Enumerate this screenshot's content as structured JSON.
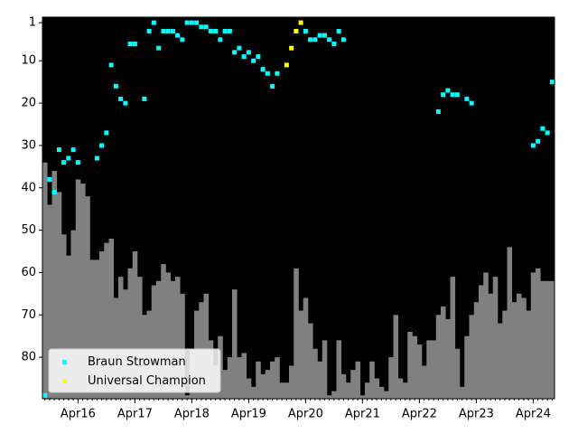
{
  "chart_data": {
    "type": "scatter",
    "x": [
      "2015-09",
      "2015-10",
      "2015-11",
      "2015-12",
      "2016-01",
      "2016-02",
      "2016-03",
      "2016-04",
      "2016-05",
      "2016-06",
      "2016-07",
      "2016-08",
      "2016-09",
      "2016-10",
      "2016-11",
      "2016-12",
      "2017-01",
      "2017-02",
      "2017-03",
      "2017-04",
      "2017-05",
      "2017-06",
      "2017-07",
      "2017-08",
      "2017-09",
      "2017-10",
      "2017-11",
      "2017-12",
      "2018-01",
      "2018-02",
      "2018-03",
      "2018-04",
      "2018-05",
      "2018-06",
      "2018-07",
      "2018-08",
      "2018-09",
      "2018-10",
      "2018-11",
      "2018-12",
      "2019-01",
      "2019-02",
      "2019-03",
      "2019-04",
      "2019-05",
      "2019-06",
      "2019-07",
      "2019-08",
      "2019-09",
      "2019-10",
      "2019-11",
      "2019-12",
      "2020-01",
      "2020-02",
      "2020-03",
      "2020-04",
      "2020-05",
      "2020-06",
      "2020-07",
      "2020-08",
      "2020-09",
      "2020-10",
      "2020-11",
      "2020-12",
      "2021-01",
      "2021-02",
      "2021-03",
      "2021-04",
      "2021-05",
      "2021-06",
      "2021-07",
      "2021-08",
      "2021-09",
      "2021-10",
      "2021-11",
      "2021-12",
      "2022-01",
      "2022-02",
      "2022-03",
      "2022-04",
      "2022-05",
      "2022-06",
      "2022-07",
      "2022-08",
      "2022-09",
      "2022-10",
      "2022-11",
      "2022-12",
      "2023-01",
      "2023-02",
      "2023-03",
      "2023-04",
      "2023-05",
      "2023-06",
      "2023-07",
      "2023-08",
      "2023-09",
      "2023-10",
      "2023-11",
      "2023-12",
      "2024-01",
      "2024-02",
      "2024-03",
      "2024-04",
      "2024-05",
      "2024-06",
      "2024-07",
      "2024-08"
    ],
    "bars": {
      "color": "#808080",
      "values": [
        34,
        44,
        36,
        41,
        51,
        56,
        50,
        38,
        39,
        42,
        57,
        57,
        55,
        53,
        52,
        66,
        61,
        64,
        59,
        55,
        61,
        70,
        69,
        63,
        62,
        58,
        60,
        62,
        61,
        65,
        89,
        78,
        69,
        67,
        65,
        76,
        82,
        75,
        83,
        80,
        64,
        80,
        79,
        85,
        87,
        81,
        84,
        83,
        81,
        80,
        86,
        86,
        82,
        59,
        69,
        66,
        72,
        78,
        81,
        76,
        89,
        88,
        76,
        84,
        86,
        83,
        81,
        89,
        86,
        81,
        85,
        87,
        88,
        80,
        70,
        85,
        86,
        74,
        75,
        77,
        82,
        76,
        76,
        70,
        68,
        71,
        61,
        78,
        87,
        75,
        70,
        67,
        63,
        60,
        65,
        61,
        72,
        69,
        54,
        67,
        65,
        66,
        69,
        60,
        59,
        62,
        62,
        62
      ]
    },
    "series": [
      {
        "name": "Braun Strowman",
        "color": "#00ffff",
        "values": [
          89,
          38,
          41,
          31,
          34,
          33,
          31,
          34,
          null,
          null,
          null,
          33,
          30,
          27,
          11,
          16,
          19,
          20,
          6,
          6,
          null,
          19,
          3,
          1,
          7,
          3,
          3,
          3,
          4,
          5,
          1,
          1,
          1,
          2,
          2,
          3,
          3,
          5,
          3,
          3,
          8,
          7,
          9,
          8,
          10,
          9,
          12,
          13,
          16,
          13,
          null,
          null,
          null,
          null,
          null,
          3,
          5,
          5,
          4,
          4,
          5,
          6,
          3,
          5,
          null,
          null,
          null,
          null,
          null,
          null,
          null,
          null,
          null,
          null,
          null,
          null,
          null,
          null,
          null,
          null,
          null,
          null,
          null,
          22,
          18,
          17,
          18,
          18,
          null,
          19,
          20,
          null,
          null,
          null,
          null,
          null,
          null,
          null,
          null,
          null,
          null,
          null,
          null,
          30,
          29,
          26,
          27,
          15
        ]
      },
      {
        "name": "Universal Champion",
        "color": "#ffff00",
        "values": [
          null,
          null,
          null,
          null,
          null,
          null,
          null,
          null,
          null,
          null,
          null,
          null,
          null,
          null,
          null,
          null,
          null,
          null,
          null,
          null,
          null,
          null,
          null,
          null,
          null,
          null,
          null,
          null,
          null,
          null,
          null,
          null,
          null,
          null,
          null,
          null,
          null,
          null,
          null,
          null,
          null,
          null,
          null,
          null,
          null,
          null,
          null,
          null,
          null,
          null,
          null,
          11,
          7,
          3,
          1,
          null,
          null,
          null,
          null,
          null,
          null,
          null,
          null,
          null,
          null,
          null,
          null,
          null,
          null,
          null,
          null,
          null,
          null,
          null,
          null,
          null,
          null,
          null,
          null,
          null,
          null,
          null,
          null,
          null,
          null,
          null,
          null,
          null,
          null,
          null,
          null,
          null,
          null,
          null,
          null,
          null,
          null,
          null,
          null,
          null,
          null,
          null,
          null,
          null,
          null,
          null,
          null,
          null
        ]
      }
    ],
    "ylim": [
      89.8,
      -0.3
    ],
    "yticks": [
      1,
      10,
      20,
      30,
      40,
      50,
      60,
      70,
      80
    ],
    "xticks": [
      {
        "value": "2016-04",
        "label": "Apr16"
      },
      {
        "value": "2017-04",
        "label": "Apr17"
      },
      {
        "value": "2018-04",
        "label": "Apr18"
      },
      {
        "value": "2019-04",
        "label": "Apr19"
      },
      {
        "value": "2020-04",
        "label": "Apr20"
      },
      {
        "value": "2021-04",
        "label": "Apr21"
      },
      {
        "value": "2022-04",
        "label": "Apr22"
      },
      {
        "value": "2023-04",
        "label": "Apr23"
      },
      {
        "value": "2024-04",
        "label": "Apr24"
      }
    ],
    "background": "#000000",
    "legend": "lower left"
  }
}
